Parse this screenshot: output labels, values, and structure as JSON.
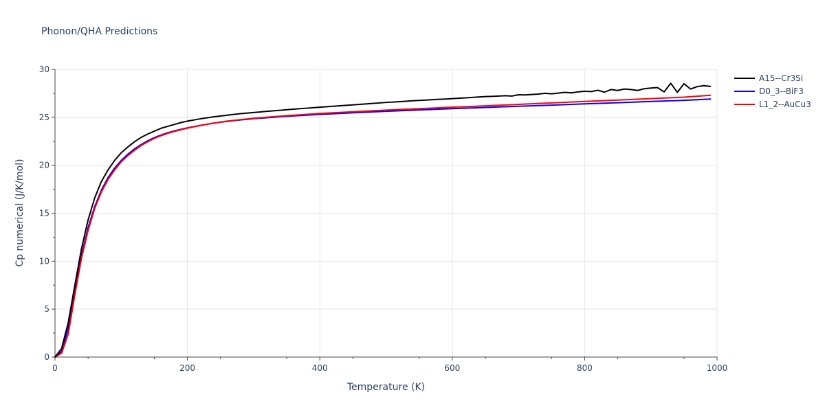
{
  "chart_data": {
    "type": "line",
    "title": "Phonon/QHA Predictions",
    "xlabel": "Temperature (K)",
    "ylabel": "Cp numerical (J/K/mol)",
    "xlim": [
      0,
      1000
    ],
    "ylim": [
      0,
      30
    ],
    "x_ticks": [
      0,
      200,
      400,
      600,
      800,
      1000
    ],
    "x_tick_labels": [
      "0",
      "200",
      "400",
      "600",
      "800",
      "1000"
    ],
    "y_ticks": [
      0,
      5,
      10,
      15,
      20,
      25,
      30
    ],
    "y_tick_labels": [
      "0",
      "5",
      "10",
      "15",
      "20",
      "25",
      "30"
    ],
    "grid": true,
    "legend_position": "top-right",
    "series": [
      {
        "name": "A15--Cr3Si",
        "color": "#000000",
        "x": [
          0,
          10,
          20,
          30,
          40,
          50,
          60,
          70,
          80,
          90,
          100,
          110,
          120,
          130,
          140,
          150,
          160,
          170,
          180,
          190,
          200,
          220,
          240,
          260,
          280,
          300,
          320,
          340,
          360,
          380,
          400,
          420,
          440,
          460,
          480,
          500,
          520,
          540,
          560,
          580,
          590,
          600,
          620,
          640,
          650,
          660,
          680,
          690,
          700,
          710,
          720,
          730,
          740,
          750,
          760,
          770,
          780,
          790,
          800,
          810,
          820,
          830,
          840,
          850,
          860,
          870,
          880,
          890,
          900,
          910,
          920,
          930,
          940,
          950,
          960,
          970,
          980,
          990
        ],
        "values": [
          0.0,
          0.9,
          3.6,
          7.5,
          11.3,
          14.3,
          16.6,
          18.3,
          19.5,
          20.5,
          21.3,
          21.9,
          22.45,
          22.9,
          23.25,
          23.55,
          23.85,
          24.05,
          24.25,
          24.45,
          24.6,
          24.85,
          25.05,
          25.22,
          25.38,
          25.5,
          25.62,
          25.73,
          25.85,
          25.95,
          26.05,
          26.15,
          26.25,
          26.35,
          26.45,
          26.55,
          26.63,
          26.72,
          26.8,
          26.88,
          26.9,
          26.95,
          27.03,
          27.12,
          27.16,
          27.18,
          27.25,
          27.22,
          27.35,
          27.33,
          27.38,
          27.42,
          27.5,
          27.45,
          27.52,
          27.6,
          27.55,
          27.65,
          27.72,
          27.68,
          27.82,
          27.62,
          27.9,
          27.8,
          27.95,
          27.9,
          27.8,
          27.98,
          28.05,
          28.1,
          27.65,
          28.55,
          27.6,
          28.5,
          27.95,
          28.2,
          28.3,
          28.22
        ]
      },
      {
        "name": "D0_3--BiF3",
        "color": "#0000ff",
        "x": [
          0,
          10,
          20,
          30,
          40,
          50,
          60,
          70,
          80,
          90,
          100,
          110,
          120,
          130,
          140,
          150,
          160,
          170,
          180,
          190,
          200,
          220,
          240,
          260,
          280,
          300,
          350,
          400,
          450,
          500,
          550,
          600,
          650,
          700,
          750,
          800,
          850,
          900,
          950,
          990
        ],
        "values": [
          0.0,
          0.6,
          3.0,
          6.9,
          10.6,
          13.5,
          15.7,
          17.4,
          18.7,
          19.7,
          20.5,
          21.15,
          21.7,
          22.15,
          22.55,
          22.88,
          23.15,
          23.38,
          23.58,
          23.75,
          23.9,
          24.17,
          24.4,
          24.58,
          24.73,
          24.85,
          25.1,
          25.3,
          25.47,
          25.62,
          25.77,
          25.9,
          26.03,
          26.15,
          26.27,
          26.4,
          26.52,
          26.65,
          26.77,
          26.9
        ]
      },
      {
        "name": "L1_2--AuCu3",
        "color": "#ff0000",
        "x": [
          0,
          10,
          20,
          30,
          40,
          50,
          60,
          70,
          80,
          90,
          100,
          110,
          120,
          130,
          140,
          150,
          160,
          170,
          180,
          190,
          200,
          220,
          240,
          260,
          280,
          300,
          350,
          400,
          450,
          500,
          550,
          600,
          650,
          700,
          750,
          800,
          850,
          900,
          950,
          990
        ],
        "values": [
          0.0,
          0.4,
          2.4,
          6.5,
          10.3,
          13.2,
          15.5,
          17.2,
          18.5,
          19.5,
          20.35,
          21.0,
          21.55,
          22.05,
          22.45,
          22.8,
          23.08,
          23.32,
          23.52,
          23.7,
          23.87,
          24.15,
          24.4,
          24.6,
          24.76,
          24.9,
          25.17,
          25.4,
          25.58,
          25.75,
          25.9,
          26.05,
          26.2,
          26.35,
          26.5,
          26.65,
          26.8,
          26.95,
          27.1,
          27.3
        ]
      }
    ]
  }
}
